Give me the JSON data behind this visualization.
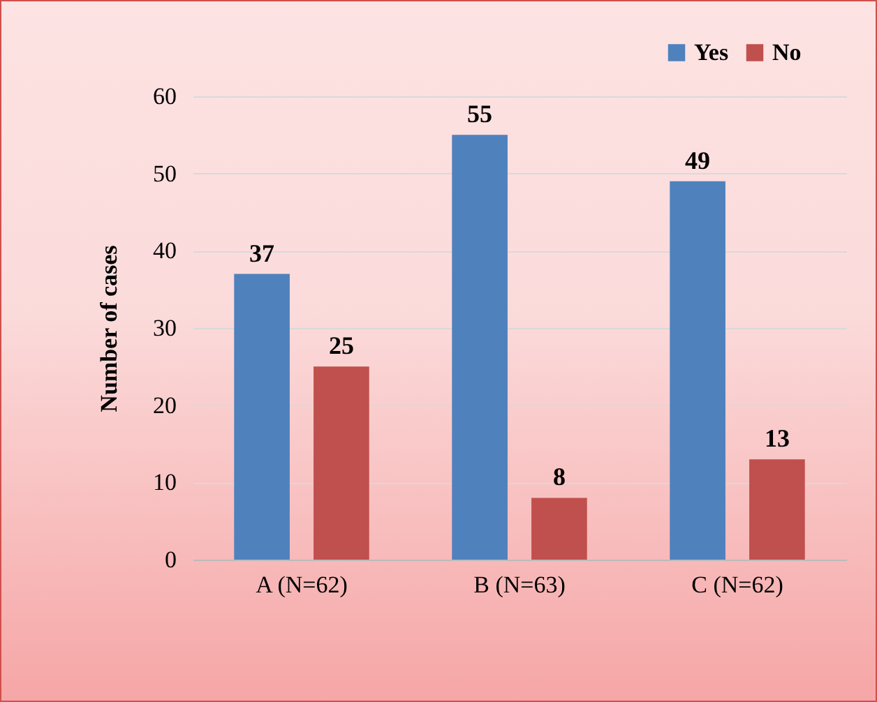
{
  "chart_data": {
    "type": "bar",
    "ylabel": "Number of cases",
    "categories": [
      "A  (N=62)",
      "B (N=63)",
      "C (N=62)"
    ],
    "series": [
      {
        "name": "Yes",
        "color": "#4f81bd",
        "values": [
          37,
          55,
          49
        ]
      },
      {
        "name": "No",
        "color": "#c0504d",
        "values": [
          25,
          8,
          13
        ]
      }
    ],
    "ylim": [
      0,
      60
    ],
    "yticks": [
      0,
      10,
      20,
      30,
      40,
      50,
      60
    ],
    "grid": "y",
    "legend": "top right",
    "data_labels": true
  }
}
